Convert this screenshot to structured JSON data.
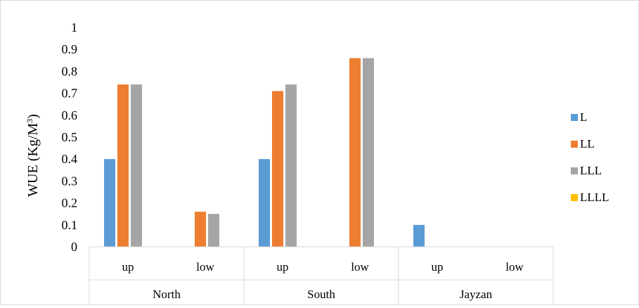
{
  "chart_data": {
    "type": "bar",
    "title": "",
    "ylabel": "WUE (Kg/M",
    "ylabel_sup": "3",
    "ylabel_tail": ")",
    "ylim": [
      0,
      1
    ],
    "yticks": [
      "0",
      "0.1",
      "0.2",
      "0.3",
      "0.4",
      "0.5",
      "0.6",
      "0.7",
      "0.8",
      "0.9",
      "1"
    ],
    "groups": [
      {
        "name": "North",
        "categories": [
          "up",
          "low"
        ]
      },
      {
        "name": "South",
        "categories": [
          "up",
          "low"
        ]
      },
      {
        "name": "Jayzan",
        "categories": [
          "up",
          "low"
        ]
      }
    ],
    "series": [
      {
        "name": "L",
        "color": "#5B9BD5",
        "values": [
          0.4,
          0,
          0.4,
          0,
          0.1,
          0
        ]
      },
      {
        "name": "LL",
        "color": "#ED7D31",
        "values": [
          0.74,
          0.16,
          0.71,
          0.86,
          0,
          0
        ]
      },
      {
        "name": "LLL",
        "color": "#A5A5A5",
        "values": [
          0.74,
          0.15,
          0.74,
          0.86,
          0,
          0
        ]
      },
      {
        "name": "LLLL",
        "color": "#FFC000",
        "values": [
          0,
          0,
          0,
          0,
          0,
          0
        ]
      }
    ],
    "grid": false,
    "legend_position": "right"
  }
}
